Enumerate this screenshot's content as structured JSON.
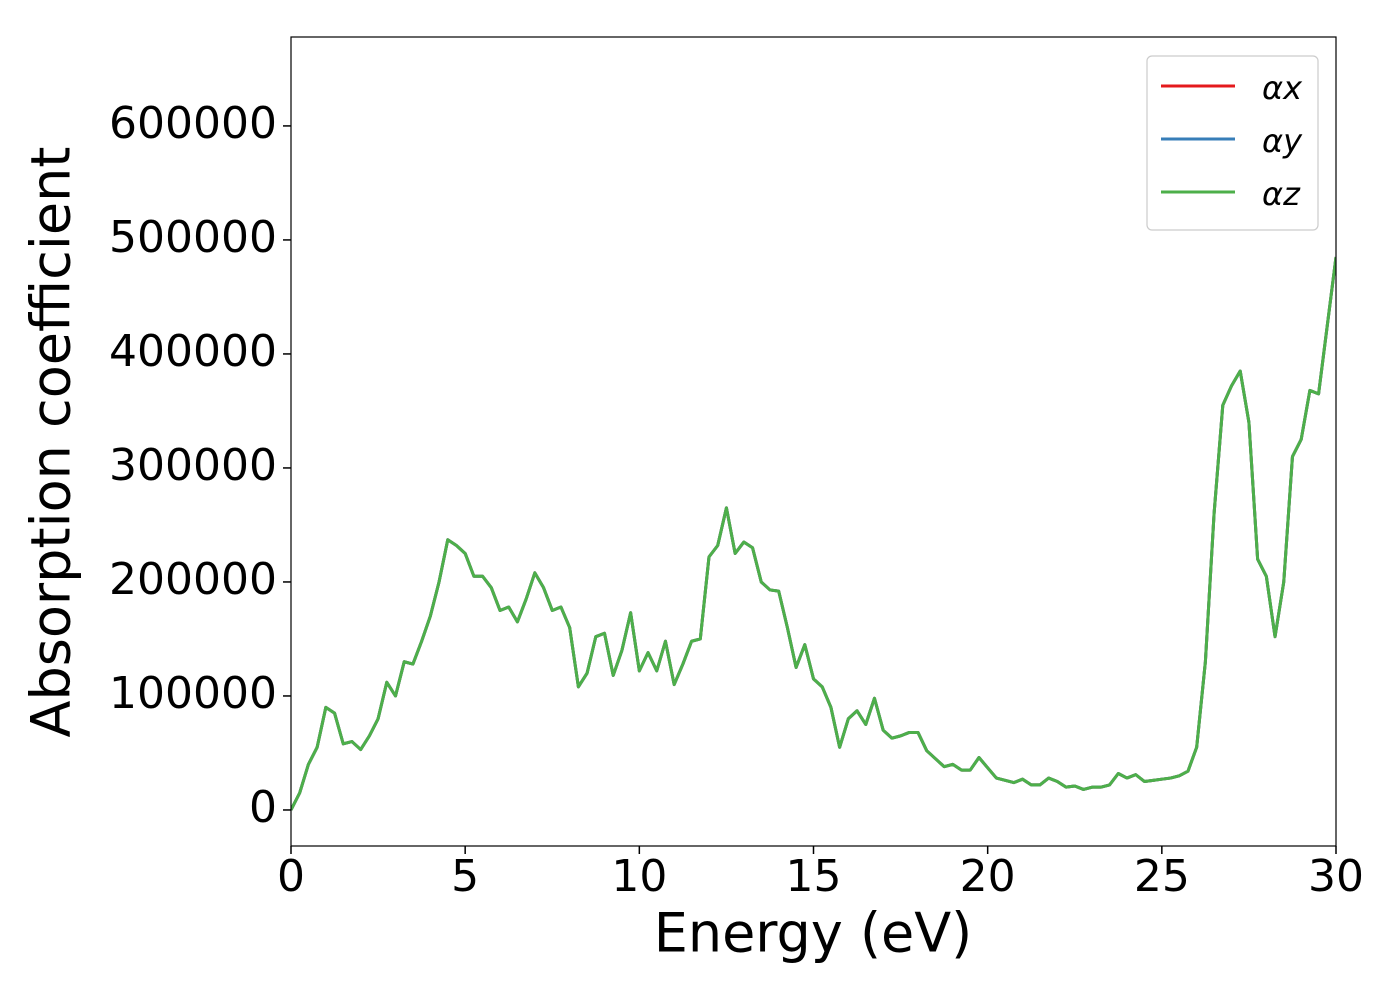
{
  "chart_data": {
    "type": "line",
    "x_label": "Energy (eV)",
    "y_label": "Absorption coefficient",
    "x": [
      0,
      0.25,
      0.5,
      0.75,
      1,
      1.25,
      1.5,
      1.75,
      2,
      2.25,
      2.5,
      2.75,
      3,
      3.25,
      3.5,
      3.75,
      4,
      4.25,
      4.5,
      4.75,
      5,
      5.25,
      5.5,
      5.75,
      6,
      6.25,
      6.5,
      6.75,
      7,
      7.25,
      7.5,
      7.75,
      8,
      8.25,
      8.5,
      8.75,
      9,
      9.25,
      9.5,
      9.75,
      10,
      10.25,
      10.5,
      10.75,
      11,
      11.25,
      11.5,
      11.75,
      12,
      12.25,
      12.5,
      12.75,
      13,
      13.25,
      13.5,
      13.75,
      14,
      14.25,
      14.5,
      14.75,
      15,
      15.25,
      15.5,
      15.75,
      16,
      16.25,
      16.5,
      16.75,
      17,
      17.25,
      17.5,
      17.75,
      18,
      18.25,
      18.5,
      18.75,
      19,
      19.25,
      19.5,
      19.75,
      20,
      20.25,
      20.5,
      20.75,
      21,
      21.25,
      21.5,
      21.75,
      22,
      22.25,
      22.5,
      22.75,
      23,
      23.25,
      23.5,
      23.75,
      24,
      24.25,
      24.5,
      24.75,
      25,
      25.25,
      25.5,
      25.75,
      26,
      26.25,
      26.5,
      26.75,
      27,
      27.25,
      27.5,
      27.75,
      28,
      28.25,
      28.5,
      28.75,
      29,
      29.25,
      29.5,
      29.75,
      30
    ],
    "series": [
      {
        "name": "αx",
        "color": "#e41a1c",
        "values": [
          0,
          15000,
          40000,
          55000,
          90000,
          85000,
          58000,
          60000,
          53000,
          65000,
          80000,
          112000,
          100000,
          130000,
          128000,
          148000,
          170000,
          200000,
          237000,
          232000,
          225000,
          205000,
          205000,
          195000,
          175000,
          178000,
          165000,
          185000,
          208000,
          195000,
          175000,
          178000,
          160000,
          108000,
          120000,
          152000,
          155000,
          118000,
          140000,
          173000,
          122000,
          138000,
          122000,
          148000,
          110000,
          128000,
          148000,
          150000,
          222000,
          232000,
          265000,
          225000,
          235000,
          230000,
          200000,
          193000,
          192000,
          160000,
          125000,
          145000,
          115000,
          108000,
          90000,
          55000,
          80000,
          87000,
          75000,
          98000,
          70000,
          63000,
          65000,
          68000,
          68000,
          52000,
          45000,
          38000,
          40000,
          35000,
          35000,
          46000,
          37000,
          28000,
          26000,
          24000,
          27000,
          22000,
          22000,
          28000,
          25000,
          20000,
          21000,
          18000,
          20000,
          20000,
          22000,
          32000,
          28000,
          31000,
          25000,
          26000,
          27000,
          28000,
          30000,
          34000,
          55000,
          130000,
          260000,
          355000,
          372000,
          385000,
          340000,
          220000,
          205000,
          152000,
          200000,
          310000,
          325000,
          368000,
          365000,
          425000,
          485000
        ]
      },
      {
        "name": "αy",
        "color": "#377eb8",
        "values": [
          0,
          15000,
          40000,
          55000,
          90000,
          85000,
          58000,
          60000,
          53000,
          65000,
          80000,
          112000,
          100000,
          130000,
          128000,
          148000,
          170000,
          200000,
          237000,
          232000,
          225000,
          205000,
          205000,
          195000,
          175000,
          178000,
          165000,
          185000,
          208000,
          195000,
          175000,
          178000,
          160000,
          108000,
          120000,
          152000,
          155000,
          118000,
          140000,
          173000,
          122000,
          138000,
          122000,
          148000,
          110000,
          128000,
          148000,
          150000,
          222000,
          232000,
          265000,
          225000,
          235000,
          230000,
          200000,
          193000,
          192000,
          160000,
          125000,
          145000,
          115000,
          108000,
          90000,
          55000,
          80000,
          87000,
          75000,
          98000,
          70000,
          63000,
          65000,
          68000,
          68000,
          52000,
          45000,
          38000,
          40000,
          35000,
          35000,
          46000,
          37000,
          28000,
          26000,
          24000,
          27000,
          22000,
          22000,
          28000,
          25000,
          20000,
          21000,
          18000,
          20000,
          20000,
          22000,
          32000,
          28000,
          31000,
          25000,
          26000,
          27000,
          28000,
          30000,
          34000,
          55000,
          130000,
          260000,
          355000,
          372000,
          385000,
          340000,
          220000,
          205000,
          152000,
          200000,
          310000,
          325000,
          368000,
          365000,
          425000,
          485000
        ]
      },
      {
        "name": "αz",
        "color": "#4daf4a",
        "values": [
          0,
          15000,
          40000,
          55000,
          90000,
          85000,
          58000,
          60000,
          53000,
          65000,
          80000,
          112000,
          100000,
          130000,
          128000,
          148000,
          170000,
          200000,
          237000,
          232000,
          225000,
          205000,
          205000,
          195000,
          175000,
          178000,
          165000,
          185000,
          208000,
          195000,
          175000,
          178000,
          160000,
          108000,
          120000,
          152000,
          155000,
          118000,
          140000,
          173000,
          122000,
          138000,
          122000,
          148000,
          110000,
          128000,
          148000,
          150000,
          222000,
          232000,
          265000,
          225000,
          235000,
          230000,
          200000,
          193000,
          192000,
          160000,
          125000,
          145000,
          115000,
          108000,
          90000,
          55000,
          80000,
          87000,
          75000,
          98000,
          70000,
          63000,
          65000,
          68000,
          68000,
          52000,
          45000,
          38000,
          40000,
          35000,
          35000,
          46000,
          37000,
          28000,
          26000,
          24000,
          27000,
          22000,
          22000,
          28000,
          25000,
          20000,
          21000,
          18000,
          20000,
          20000,
          22000,
          32000,
          28000,
          31000,
          25000,
          26000,
          27000,
          28000,
          30000,
          34000,
          55000,
          130000,
          260000,
          355000,
          372000,
          385000,
          340000,
          220000,
          205000,
          152000,
          200000,
          310000,
          325000,
          368000,
          365000,
          425000,
          485000
        ]
      }
    ],
    "xlim": [
      0,
      30
    ],
    "xticks": [
      0,
      5,
      10,
      15,
      20,
      25,
      30
    ],
    "ylim": [
      -31600,
      678000
    ],
    "yticks": [
      0,
      100000,
      200000,
      300000,
      400000,
      500000,
      600000
    ],
    "legend": "upper right"
  }
}
